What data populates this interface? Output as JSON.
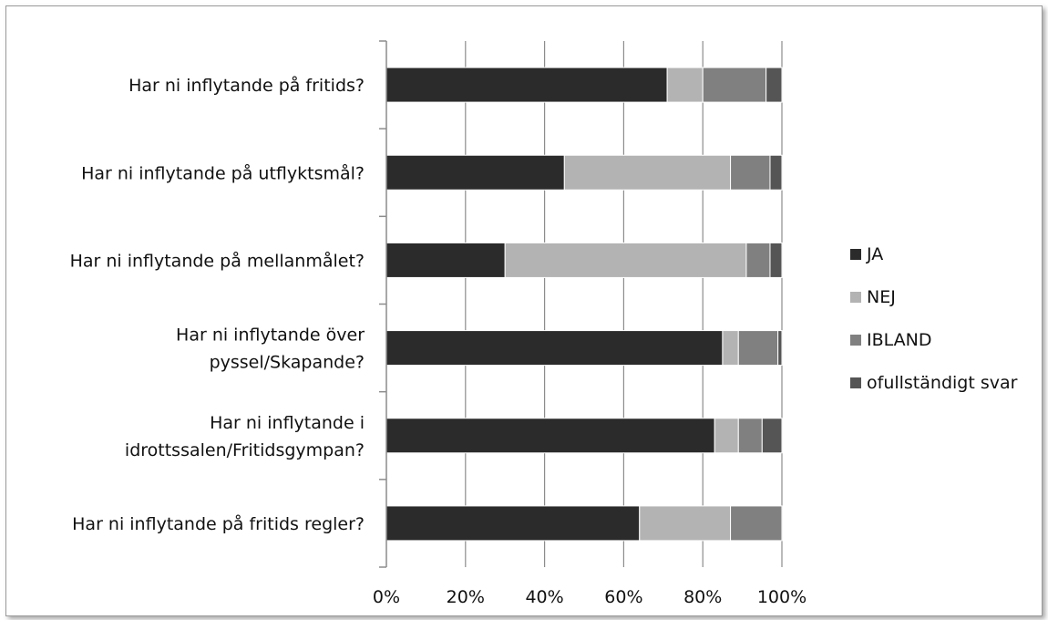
{
  "chart_data": {
    "type": "bar",
    "orientation": "horizontal",
    "stacked": "percent",
    "categories": [
      [
        "Har ni inflytande på fritids?"
      ],
      [
        "Har ni inflytande på utflyktsmål?"
      ],
      [
        "Har ni inflytande på mellanmålet?"
      ],
      [
        "Har ni inflytande över",
        "pyssel/Skapande?"
      ],
      [
        "Har ni inflytande i",
        "idrottssalen/Fritidsgympan?"
      ],
      [
        "Har ni inflytande på fritids regler?"
      ]
    ],
    "series": [
      {
        "name": "JA",
        "color": "#2b2b2b",
        "values": [
          71,
          45,
          30,
          85,
          83,
          64
        ]
      },
      {
        "name": "NEJ",
        "color": "#b3b3b3",
        "values": [
          9,
          42,
          61,
          4,
          6,
          23
        ]
      },
      {
        "name": "IBLAND",
        "color": "#808080",
        "values": [
          16,
          10,
          6,
          10,
          6,
          13
        ]
      },
      {
        "name": "ofullständigt svar",
        "color": "#555555",
        "values": [
          4,
          3,
          3,
          1,
          5,
          0
        ]
      }
    ],
    "x_ticks": [
      "0%",
      "20%",
      "40%",
      "60%",
      "80%",
      "100%"
    ],
    "xlim": [
      0,
      100
    ],
    "grid": true,
    "legend_position": "right"
  }
}
